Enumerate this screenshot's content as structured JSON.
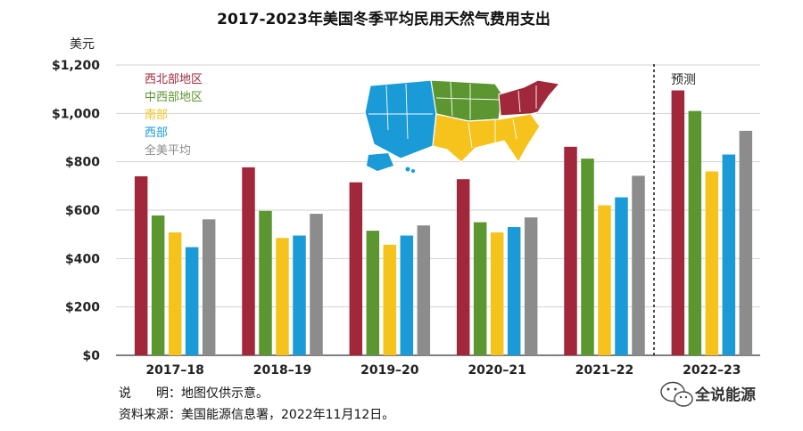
{
  "chart_data": {
    "type": "bar",
    "title": "2017-2023年美国冬季平均民用天然气费用支出",
    "ylabel": "美元",
    "xlabel": "",
    "ylim": [
      0,
      1200
    ],
    "ytick_labels": [
      "$0",
      "$200",
      "$400",
      "$600",
      "$800",
      "$1,000",
      "$1,200"
    ],
    "ytick_values": [
      0,
      200,
      400,
      600,
      800,
      1000,
      1200
    ],
    "grid": true,
    "legend_position": "top-left",
    "categories": [
      "2017–18",
      "2018–19",
      "2019–20",
      "2020–21",
      "2021–22",
      "2022–23"
    ],
    "series": [
      {
        "name": "西北部地区",
        "color": "#A0283A",
        "values": [
          740,
          777,
          715,
          728,
          862,
          1095
        ]
      },
      {
        "name": "中西部地区",
        "color": "#5C9631",
        "values": [
          578,
          597,
          515,
          550,
          813,
          1010
        ]
      },
      {
        "name": "南部",
        "color": "#F5C31B",
        "values": [
          508,
          485,
          457,
          508,
          620,
          760
        ]
      },
      {
        "name": "西部",
        "color": "#1A9AD7",
        "values": [
          447,
          495,
          495,
          530,
          653,
          830
        ]
      },
      {
        "name": "全美平均",
        "color": "#8C8C8C",
        "values": [
          562,
          585,
          537,
          570,
          742,
          928
        ]
      }
    ],
    "annotations": [
      {
        "text": "预测",
        "applies_to": "2022–23"
      }
    ]
  },
  "notes": {
    "explanation": "说　　明：地图仅供示意。",
    "source": "资料来源：美国能源信息署，2022年11月12日。"
  },
  "watermark": {
    "text": "全说能源",
    "icon": "wechat-icon"
  },
  "map": {
    "icon": "us-regions-map-icon",
    "colors": {
      "northeast": "#A0283A",
      "midwest": "#5C9631",
      "south": "#F5C31B",
      "west": "#1A9AD7"
    }
  }
}
